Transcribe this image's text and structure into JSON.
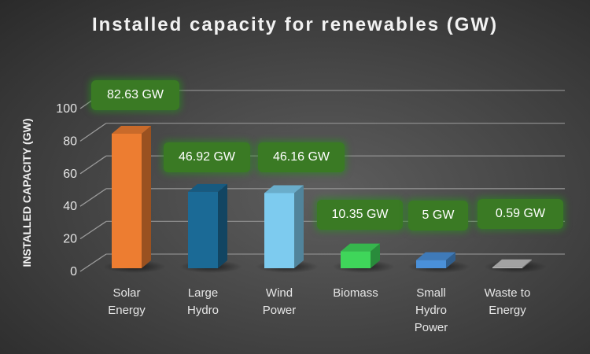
{
  "chart_data": {
    "type": "bar",
    "style": "3d-column",
    "title": "Installed capacity for renewables (GW)",
    "xlabel": "",
    "ylabel": "INSTALLED CAPACITY (GW)",
    "ylim": [
      0,
      100
    ],
    "yticks": [
      0,
      20,
      40,
      60,
      80,
      100
    ],
    "grid": true,
    "categories": [
      [
        "Solar",
        "Energy"
      ],
      [
        "Large",
        "Hydro"
      ],
      [
        "Wind",
        "Power"
      ],
      [
        "Biomass"
      ],
      [
        "Small",
        "Hydro",
        "Power"
      ],
      [
        "Waste to",
        "Energy"
      ]
    ],
    "values": [
      82.63,
      46.92,
      46.16,
      10.35,
      5,
      0.59
    ],
    "data_labels": [
      "82.63 GW",
      "46.92 GW",
      "46.16 GW",
      "10.35 GW",
      "5 GW",
      "0.59 GW"
    ],
    "colors": [
      "#ED7D31",
      "#1B6A96",
      "#7DCBEF",
      "#3FD65A",
      "#4A90D9",
      "#BFBFBF"
    ],
    "label_box_color": "#3A7A24"
  }
}
